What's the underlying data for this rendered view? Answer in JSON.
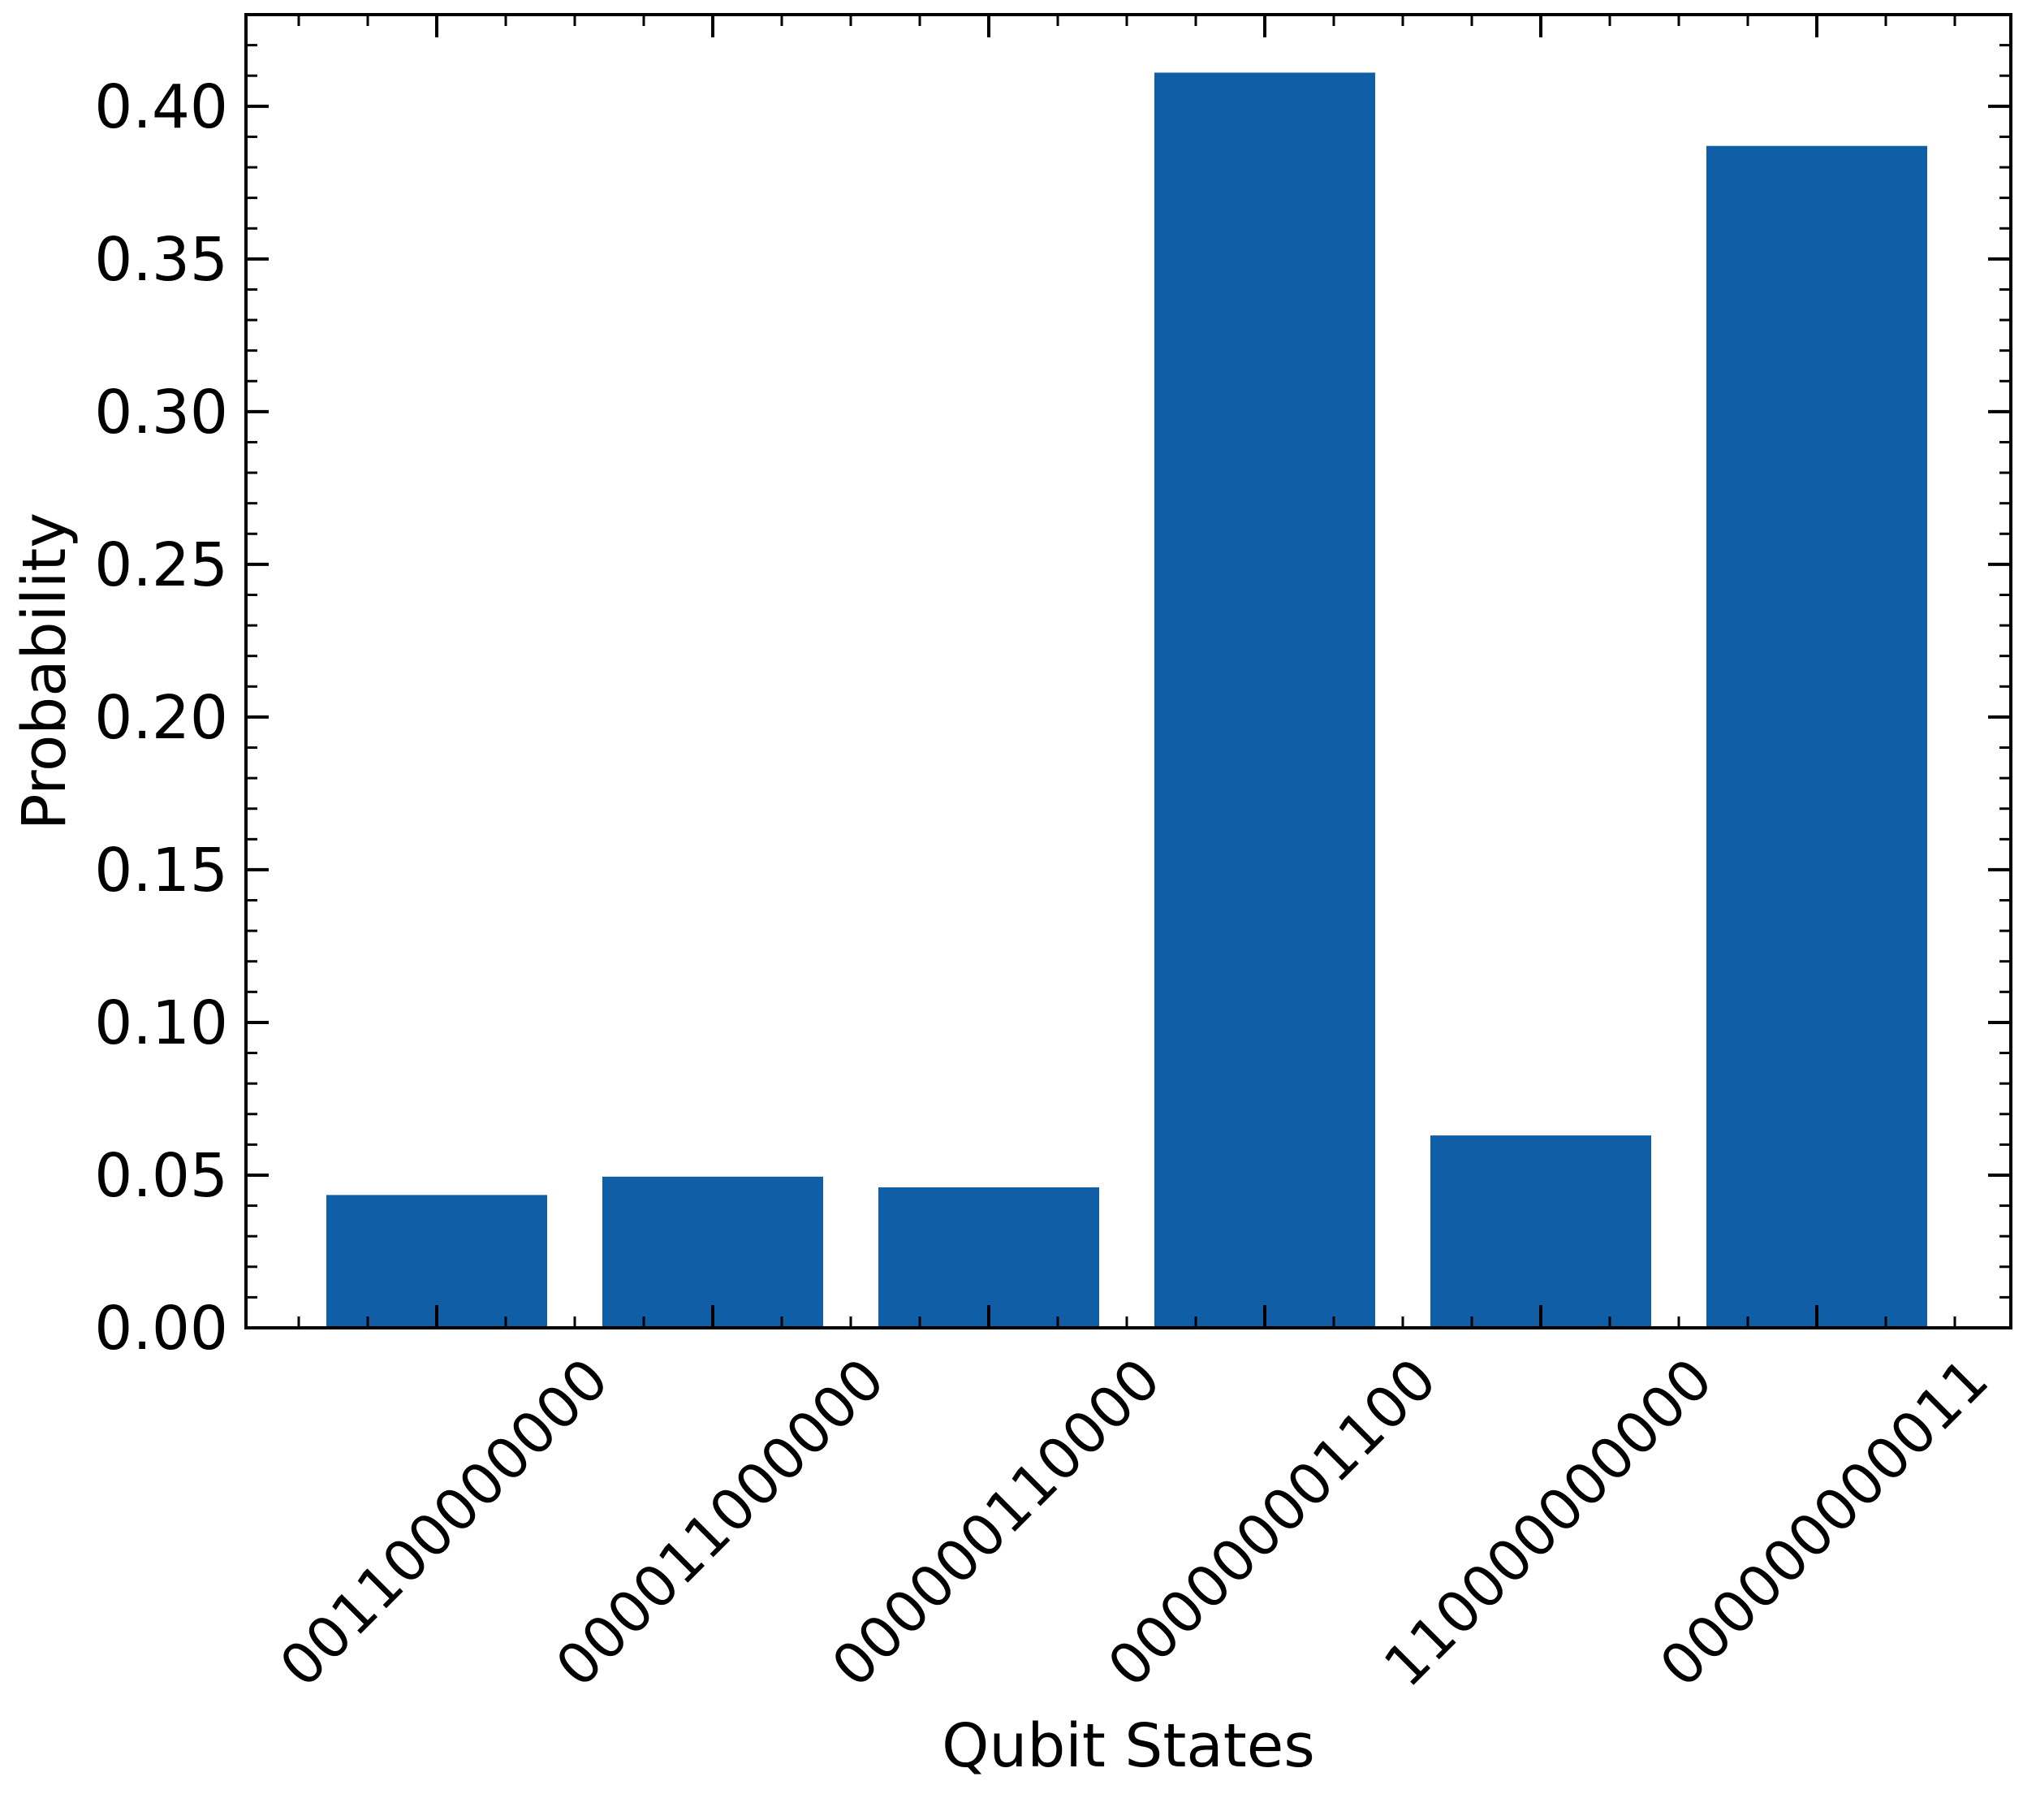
{
  "chart_data": {
    "type": "bar",
    "title": "",
    "xlabel": "Qubit States",
    "ylabel": "Probability",
    "categories": [
      "001100000000",
      "000011000000",
      "000000110000",
      "000000001100",
      "110000000000",
      "000000000011"
    ],
    "values": [
      0.0435,
      0.0495,
      0.046,
      0.411,
      0.063,
      0.387
    ],
    "ylim": [
      0,
      0.43
    ],
    "yticks": [
      "0.00",
      "0.05",
      "0.10",
      "0.15",
      "0.20",
      "0.25",
      "0.30",
      "0.35",
      "0.40"
    ],
    "ytick_values": [
      0,
      0.05,
      0.1,
      0.15,
      0.2,
      0.25,
      0.3,
      0.35,
      0.4
    ],
    "y_minor_step": 0.01,
    "x_tick_rotation_deg": 45,
    "grid": false,
    "legend": "none",
    "bar_color": "#0f5ea6"
  }
}
